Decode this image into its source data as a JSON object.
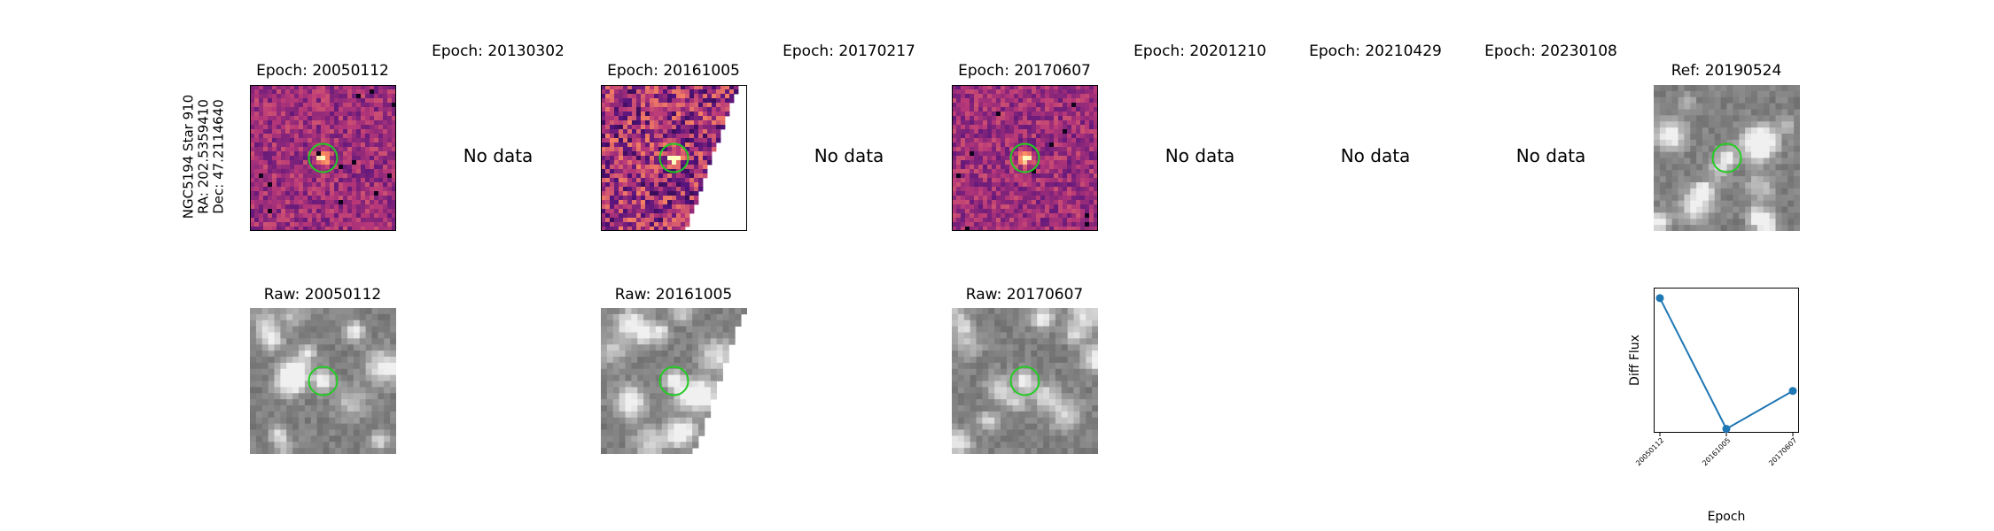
{
  "object": {
    "name": "NGC5194 Star 910",
    "ra": "RA: 202.5359410",
    "dec": "Dec: 47.2114640"
  },
  "row1": [
    {
      "title": "Epoch: 20050112",
      "has_data": true
    },
    {
      "title": "Epoch: 20130302",
      "has_data": false
    },
    {
      "title": "Epoch: 20161005",
      "has_data": true
    },
    {
      "title": "Epoch: 20170217",
      "has_data": false
    },
    {
      "title": "Epoch: 20170607",
      "has_data": true
    },
    {
      "title": "Epoch: 20201210",
      "has_data": false
    },
    {
      "title": "Epoch: 20210429",
      "has_data": false
    },
    {
      "title": "Epoch: 20230108",
      "has_data": false
    },
    {
      "title": "Ref: 20190524",
      "has_data": true
    }
  ],
  "no_data_label": "No data",
  "row2": [
    {
      "title": "Raw: 20050112"
    },
    {
      "title": "Raw: 20161005"
    },
    {
      "title": "Raw: 20170607"
    }
  ],
  "colors": {
    "circle": "#22cc22",
    "line": "#1f77b4",
    "diff_bg": "#7a3a8c",
    "raw_bg": "#7a7a7a"
  },
  "chart_data": {
    "type": "line",
    "title": "",
    "xlabel": "Epoch",
    "ylabel": "Diff Flux",
    "categories": [
      "20050112",
      "20161005",
      "20170607"
    ],
    "values": [
      1.0,
      0.0,
      0.29
    ],
    "ylim": [
      -0.03,
      1.08
    ],
    "grid": false
  }
}
